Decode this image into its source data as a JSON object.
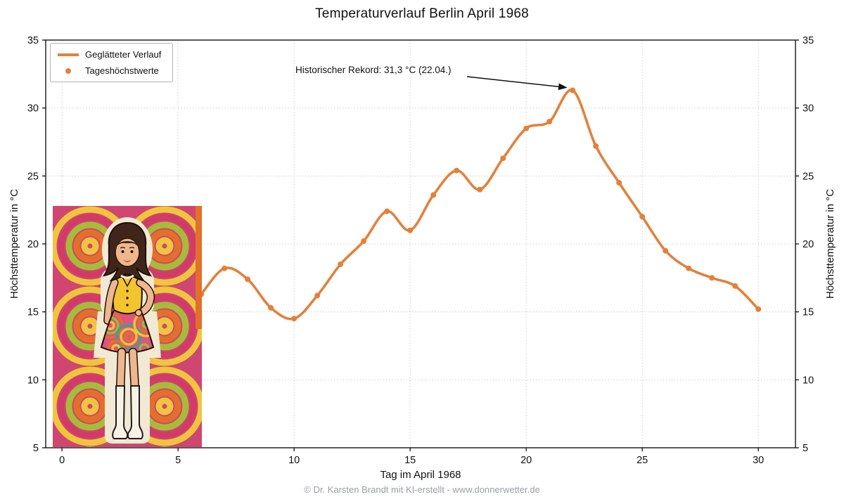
{
  "page": {
    "footer": "© Dr. Karsten Brandt mit KI-erstellt - www.donnerwetter.de"
  },
  "chart_data": {
    "type": "line",
    "title": "Temperaturverlauf Berlin April 1968",
    "xlabel": "Tag im April 1968",
    "ylabel": "Höchsttemperatur in °C",
    "xlim": [
      -0.7,
      31.6
    ],
    "ylim": [
      5,
      35
    ],
    "xticks": [
      0,
      5,
      10,
      15,
      20,
      25,
      30
    ],
    "yticks": [
      5,
      10,
      15,
      20,
      25,
      30,
      35
    ],
    "grid": true,
    "grid_style": "dotted",
    "line_color": "#E2813B",
    "legend": {
      "position": "upper-left",
      "entries": [
        {
          "label": "Geglätteter Verlauf",
          "marker": "line"
        },
        {
          "label": "Tageshöchstwerte",
          "marker": "dot"
        }
      ]
    },
    "series": [
      {
        "name": "Tageshöchstwerte",
        "x": [
          6,
          7,
          8,
          9,
          10,
          11,
          12,
          13,
          14,
          15,
          16,
          17,
          18,
          19,
          20,
          21,
          22,
          23,
          24,
          25,
          26,
          27,
          28,
          29,
          30
        ],
        "values": [
          16.3,
          18.2,
          17.4,
          15.3,
          14.5,
          16.2,
          18.5,
          20.2,
          22.4,
          21.0,
          23.6,
          25.4,
          24.0,
          26.3,
          28.5,
          29.0,
          31.3,
          27.2,
          24.5,
          22.0,
          19.5,
          18.2,
          17.5,
          16.9,
          15.2
        ]
      }
    ],
    "annotation": {
      "text": "Historischer Rekord: 31,3 °C (22.04.)",
      "target_x": 22,
      "target_y": 31.3
    },
    "overlay_image": {
      "description": "1960s psychedelic poster of a woman in yellow top, mini skirt and white go-go boots",
      "x_range": [
        -0.4,
        6.0
      ],
      "y_range": [
        5.1,
        22.8
      ]
    }
  }
}
